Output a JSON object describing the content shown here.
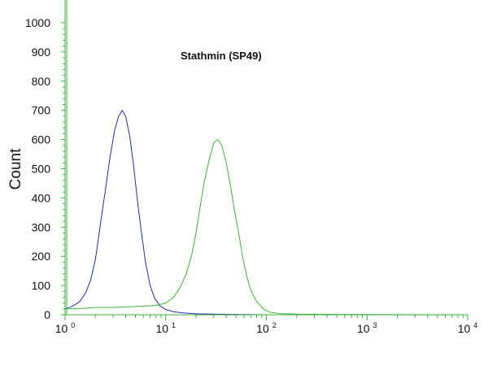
{
  "chart_data": {
    "type": "line",
    "title": "Stathmin (SP49)",
    "xlabel": "",
    "ylabel": "Count",
    "x_scale": "log",
    "xlim": [
      1,
      10000
    ],
    "ylim": [
      0,
      1000
    ],
    "y_ticks": [
      0,
      100,
      200,
      300,
      400,
      500,
      600,
      700,
      800,
      900,
      1000
    ],
    "x_ticks": [
      {
        "base": "10",
        "exp": "0"
      },
      {
        "base": "10",
        "exp": "1"
      },
      {
        "base": "10",
        "exp": "2"
      },
      {
        "base": "10",
        "exp": "3"
      },
      {
        "base": "10",
        "exp": "4"
      }
    ],
    "grid": false,
    "legend": "none",
    "series": [
      {
        "color": "#2a2ab0",
        "x": [
          1.0,
          1.2,
          1.4,
          1.6,
          1.8,
          2.0,
          2.2,
          2.5,
          2.8,
          3.1,
          3.4,
          3.7,
          4.0,
          4.4,
          4.8,
          5.2,
          5.7,
          6.3,
          7.0,
          7.8,
          8.8,
          10,
          12,
          15,
          20,
          30,
          50,
          100,
          300,
          1000,
          10000
        ],
        "y": [
          20,
          30,
          45,
          75,
          120,
          190,
          290,
          420,
          540,
          630,
          680,
          700,
          680,
          610,
          510,
          400,
          290,
          180,
          100,
          55,
          30,
          18,
          10,
          6,
          3,
          2,
          1,
          0,
          0,
          0,
          0
        ]
      },
      {
        "color": "#3cb43c",
        "x": [
          1.0,
          1.5,
          2,
          3,
          5,
          8,
          10,
          12,
          14,
          16,
          18,
          20,
          22,
          24,
          27,
          30,
          33,
          36,
          40,
          44,
          48,
          53,
          58,
          64,
          70,
          80,
          95,
          110,
          140,
          200,
          500,
          10000
        ],
        "y": [
          20,
          22,
          25,
          25,
          28,
          32,
          40,
          60,
          95,
          140,
          200,
          280,
          370,
          450,
          530,
          590,
          600,
          580,
          520,
          440,
          360,
          280,
          200,
          130,
          85,
          45,
          18,
          8,
          4,
          2,
          1,
          0
        ]
      }
    ]
  }
}
